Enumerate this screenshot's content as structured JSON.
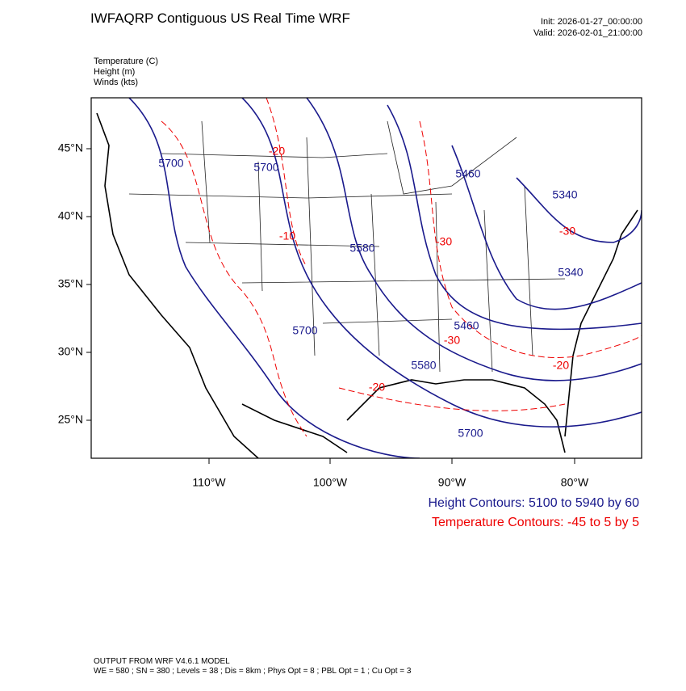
{
  "header": {
    "title": "IWFAQRP Contiguous US Real Time WRF",
    "init": "Init: 2026-01-27_00:00:00",
    "valid": "Valid: 2026-02-01_21:00:00"
  },
  "fields": [
    "Temperature   (C)",
    "Height   (m)",
    "Winds   (kts)"
  ],
  "lat_labels": [
    "45°N",
    "40°N",
    "35°N",
    "30°N",
    "25°N"
  ],
  "lon_labels": [
    "110°W",
    "100°W",
    "90°W",
    "80°W"
  ],
  "height_labels": [
    "5700",
    "5700",
    "5580",
    "5700",
    "5580",
    "5460",
    "5460",
    "5700",
    "5340",
    "5340"
  ],
  "temperature_labels": [
    "-20",
    "-10",
    "-30",
    "-30",
    "-20",
    "-20",
    "-30"
  ],
  "legend": {
    "height": "Height Contours: 5100 to 5940 by 60",
    "temperature": "Temperature Contours: -45 to 5 by 5"
  },
  "footer": {
    "line1": "OUTPUT FROM WRF V4.6.1 MODEL",
    "line2": "WE = 580 ; SN = 380 ; Levels = 38 ; Dis = 8km ; Phys Opt = 8 ; PBL Opt = 1 ; Cu Opt = 3"
  }
}
